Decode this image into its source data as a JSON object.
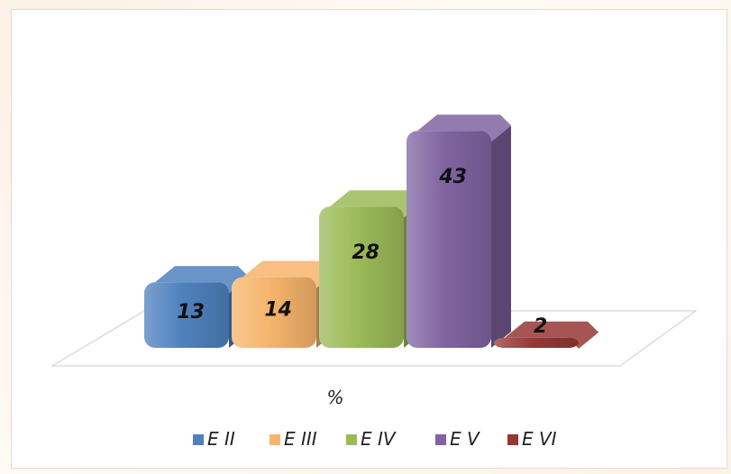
{
  "chart_data": {
    "type": "bar",
    "style": "3d-column",
    "categories": [
      "E II",
      "E III",
      "E IV",
      "E V",
      "E VI"
    ],
    "values": [
      13,
      14,
      28,
      43,
      2
    ],
    "xlabel": "%",
    "ylim": [
      0,
      50
    ],
    "grid": false,
    "legend_position": "bottom",
    "series_colors": [
      "#4f81bd",
      "#f6b46c",
      "#9bbb59",
      "#8064a2",
      "#953735"
    ],
    "legend": [
      {
        "label": "E II",
        "color": "#4f81bd"
      },
      {
        "label": "E III",
        "color": "#f6b46c"
      },
      {
        "label": "E IV",
        "color": "#9bbb59"
      },
      {
        "label": "E V",
        "color": "#8064a2"
      },
      {
        "label": "E VI",
        "color": "#953735"
      }
    ]
  }
}
